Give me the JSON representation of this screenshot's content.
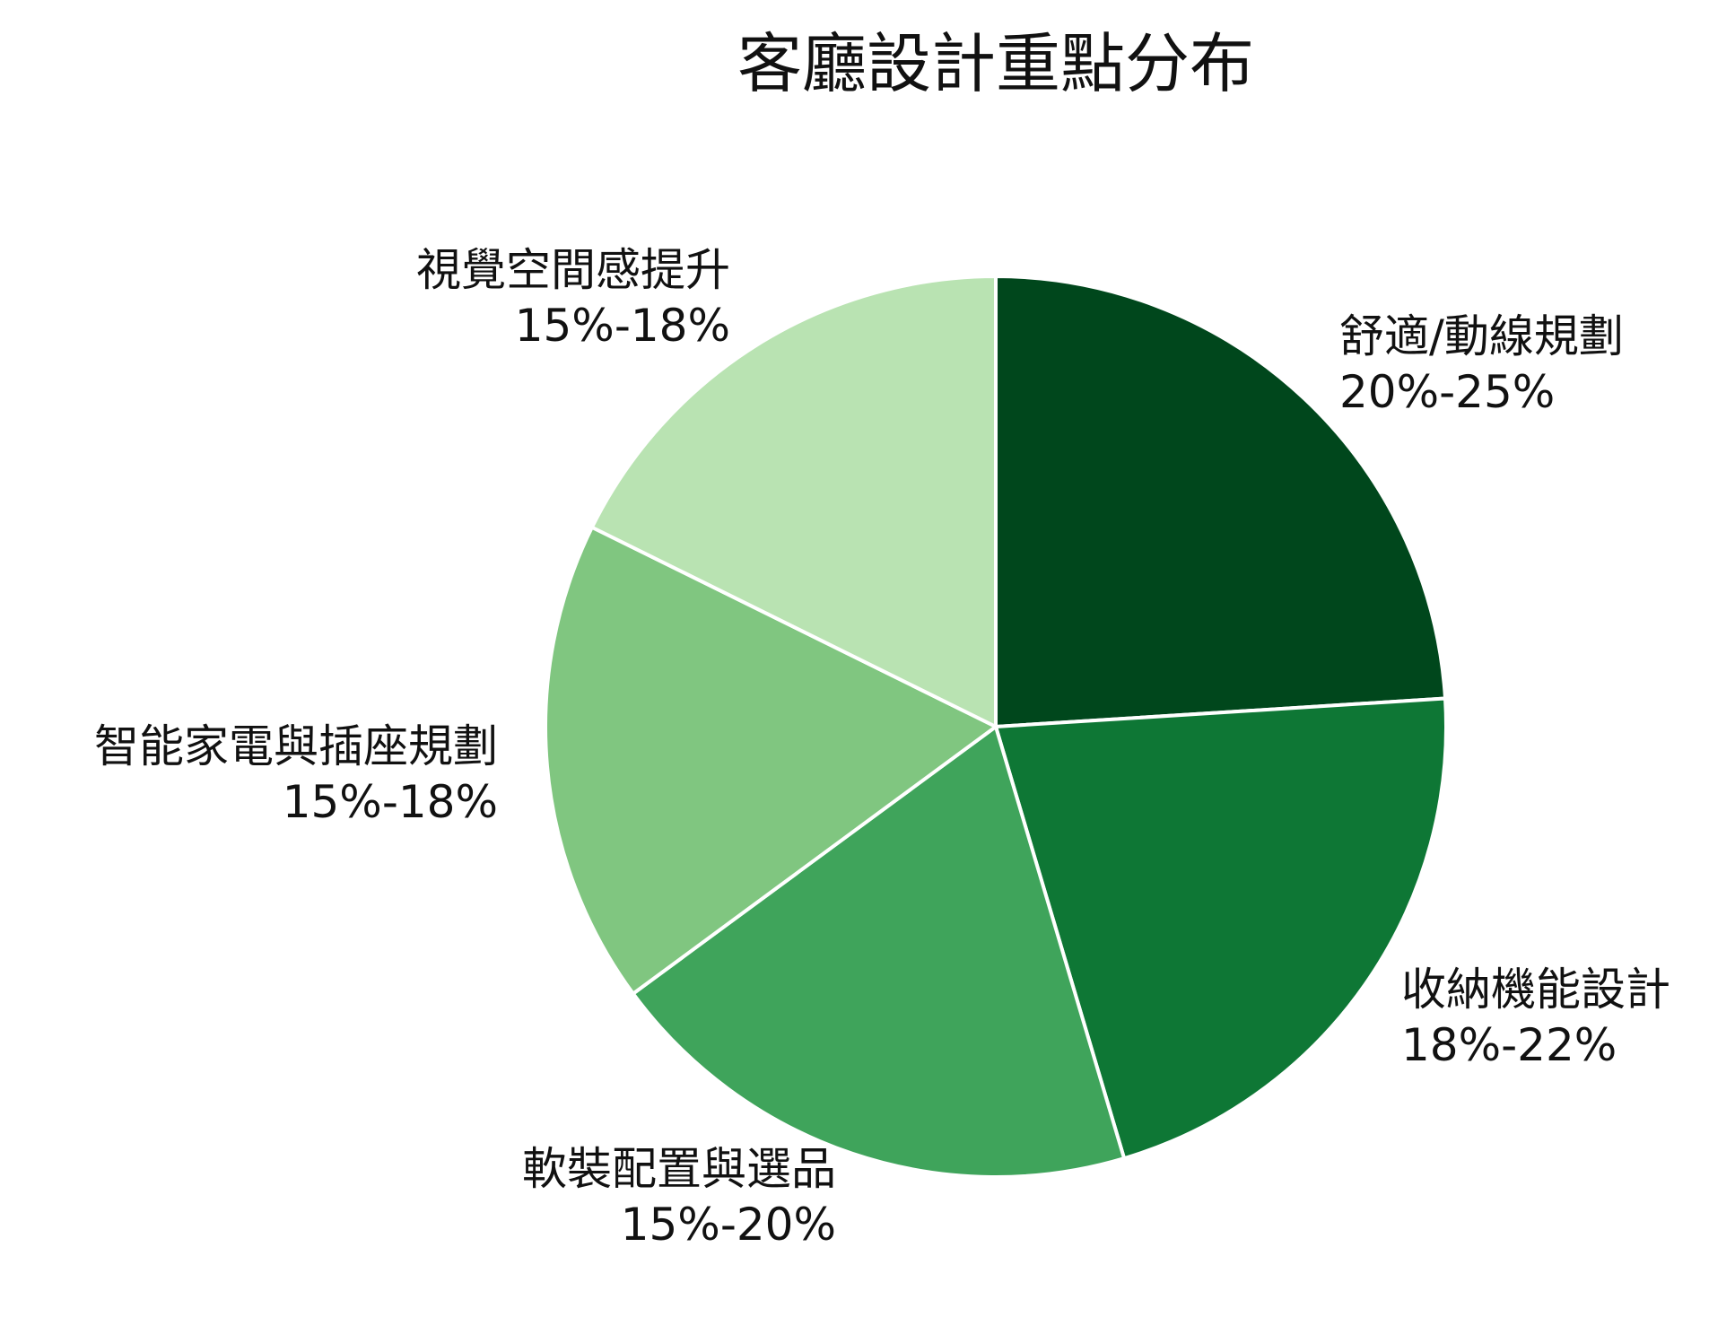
{
  "chart_data": {
    "type": "pie",
    "title": "客廳設計重點分布",
    "start_angle": "12 o'clock",
    "direction": "clockwise",
    "slices": [
      {
        "name": "舒適/動線規劃",
        "range_label": "20%-25%",
        "value": 24.0,
        "color": "#00471c"
      },
      {
        "name": "收納機能設計",
        "range_label": "18%-22%",
        "value": 21.4,
        "color": "#0e7735"
      },
      {
        "name": "軟裝配置與選品",
        "range_label": "15%-20%",
        "value": 19.5,
        "color": "#3fa45b"
      },
      {
        "name": "智能家電與插座規劃",
        "range_label": "15%-18%",
        "value": 17.4,
        "color": "#80c680"
      },
      {
        "name": "視覺空間感提升",
        "range_label": "15%-18%",
        "value": 17.7,
        "color": "#b9e3b2"
      }
    ]
  }
}
